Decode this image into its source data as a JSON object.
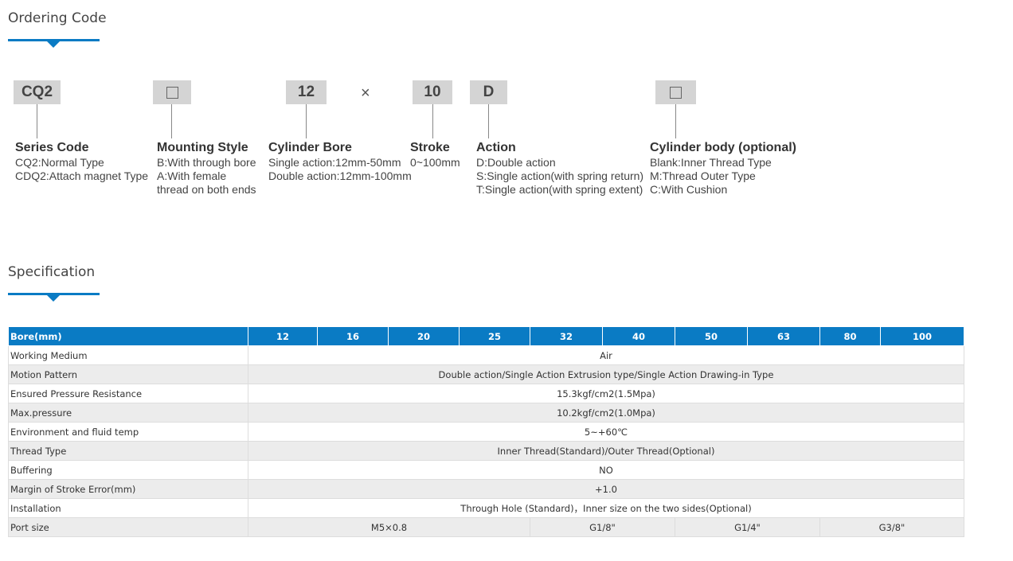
{
  "ordering": {
    "title": "Ordering Code",
    "boxes": [
      {
        "text": "CQ2"
      },
      {
        "text": ""
      },
      {
        "text": "12"
      },
      {
        "text": "10"
      },
      {
        "text": "D"
      },
      {
        "text": ""
      }
    ],
    "times_symbol": "×",
    "columns": [
      {
        "head": "Series Code",
        "lines": [
          "CQ2:Normal Type",
          "CDQ2:Attach magnet Type"
        ]
      },
      {
        "head": "Mounting Style",
        "lines": [
          "B:With through bore",
          "A:With female",
          "thread on both ends"
        ]
      },
      {
        "head": "Cylinder Bore",
        "lines": [
          "Single action:12mm-50mm",
          "Double action:12mm-100mm"
        ]
      },
      {
        "head": "Stroke",
        "lines": [
          "0~100mm"
        ]
      },
      {
        "head": "Action",
        "lines": [
          "D:Double action",
          "S:Single action(with spring return)",
          "T:Single action(with spring extent)"
        ]
      },
      {
        "head": "Cylinder body (optional)",
        "lines": [
          "Blank:Inner Thread Type",
          "M:Thread Outer Type",
          "C:With Cushion"
        ]
      }
    ]
  },
  "specification": {
    "title": "Specification",
    "header": [
      "Bore(mm)",
      "12",
      "16",
      "20",
      "25",
      "32",
      "40",
      "50",
      "63",
      "80",
      "100"
    ],
    "rows": [
      {
        "label": "Working Medium",
        "value": "Air"
      },
      {
        "label": "Motion Pattern",
        "value": "Double action/Single Action Extrusion type/Single Action Drawing-in Type"
      },
      {
        "label": "Ensured Pressure Resistance",
        "value": "15.3kgf/cm2(1.5Mpa)"
      },
      {
        "label": "Max.pressure",
        "value": "10.2kgf/cm2(1.0Mpa)"
      },
      {
        "label": "Environment and fluid temp",
        "value": "5~+60℃"
      },
      {
        "label": "Thread Type",
        "value": "Inner Thread(Standard)/Outer Thread(Optional)"
      },
      {
        "label": "Buffering",
        "value": "NO"
      },
      {
        "label": "Margin of Stroke Error(mm)",
        "value": "+1.0"
      },
      {
        "label": "Installation",
        "value": "Through Hole (Standard)，Inner size on the two sides(Optional)"
      }
    ],
    "port_row": {
      "label": "Port size",
      "values": [
        "M5×0.8",
        "G1/8\"",
        "G1/4\"",
        "G3/8\""
      ]
    }
  }
}
